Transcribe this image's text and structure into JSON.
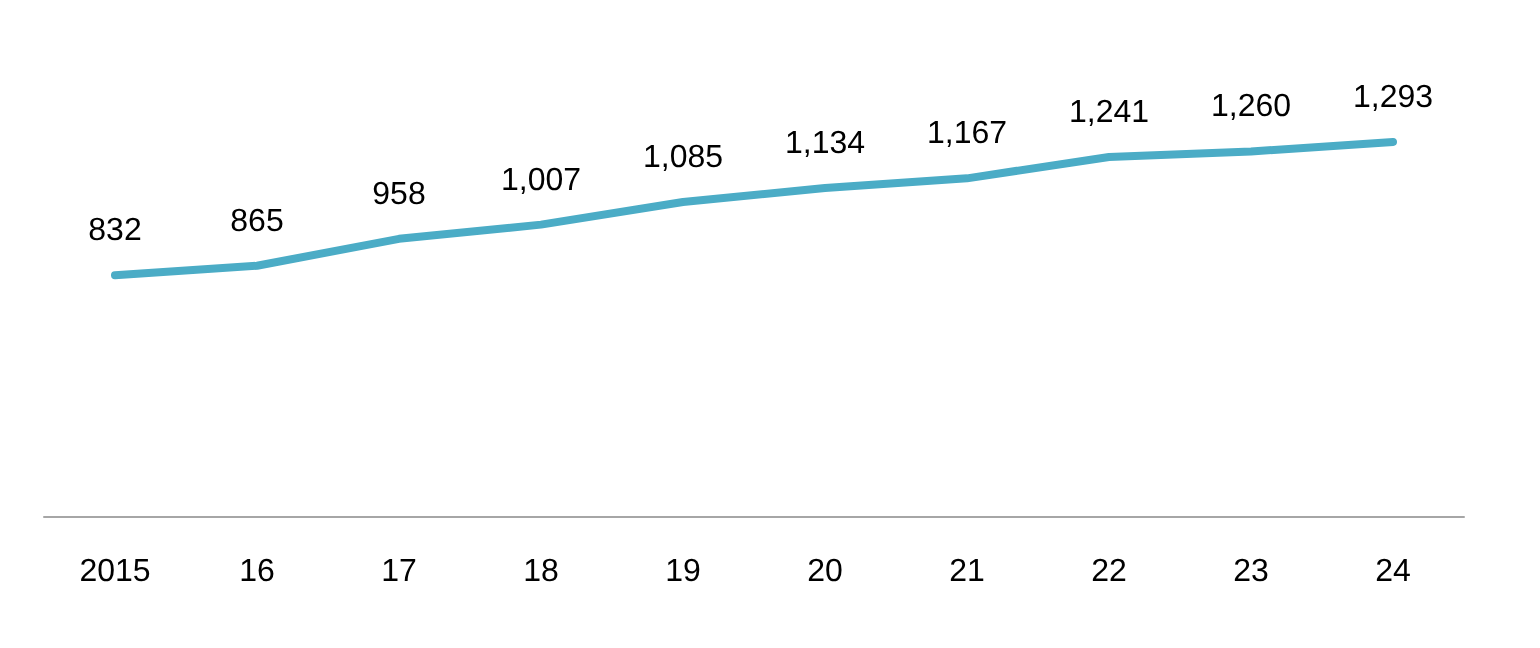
{
  "chart_data": {
    "type": "line",
    "categories": [
      "2015",
      "16",
      "17",
      "18",
      "19",
      "20",
      "21",
      "22",
      "23",
      "24"
    ],
    "series": [
      {
        "color": "#4bacc6",
        "values": [
          832,
          865,
          958,
          1007,
          1085,
          1134,
          1167,
          1241,
          1260,
          1293
        ],
        "value_labels": [
          "832",
          "865",
          "958",
          "1,007",
          "1,085",
          "1,134",
          "1,167",
          "1,241",
          "1,260",
          "1,293"
        ]
      }
    ],
    "marker": "none",
    "tick_labels": "x"
  }
}
